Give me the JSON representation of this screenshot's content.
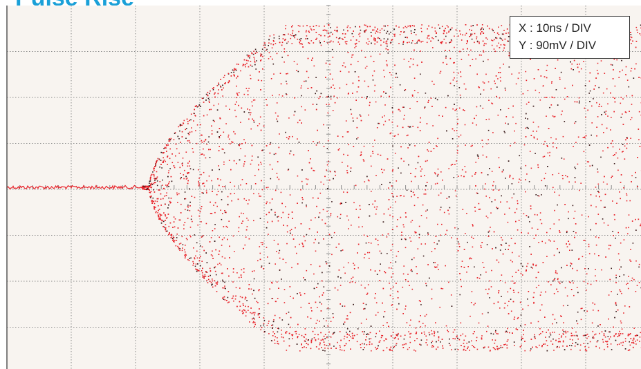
{
  "header": {
    "title": "Pulse Rise"
  },
  "legend": {
    "x_label": "X : 10ns / DIV",
    "y_label": "Y : 90mV / DIV"
  },
  "colors": {
    "background": "#f8f4f0",
    "grid": "#8a8a8a",
    "frame": "#555555",
    "trace_primary": "#e8232a",
    "trace_dark": "#3a1a1a",
    "title": "#1aa0d8"
  },
  "chart_data": {
    "type": "scatter",
    "title": "Pulse Rise",
    "x_scale": "10ns / DIV",
    "y_scale": "90mV / DIV",
    "x_divisions": 10,
    "y_divisions": 8,
    "grid": true,
    "legend_placement": "top-right",
    "envelope_div": {
      "flat_end": 2.2,
      "full_open": 4.3,
      "max_amplitude": 3.55
    }
  }
}
